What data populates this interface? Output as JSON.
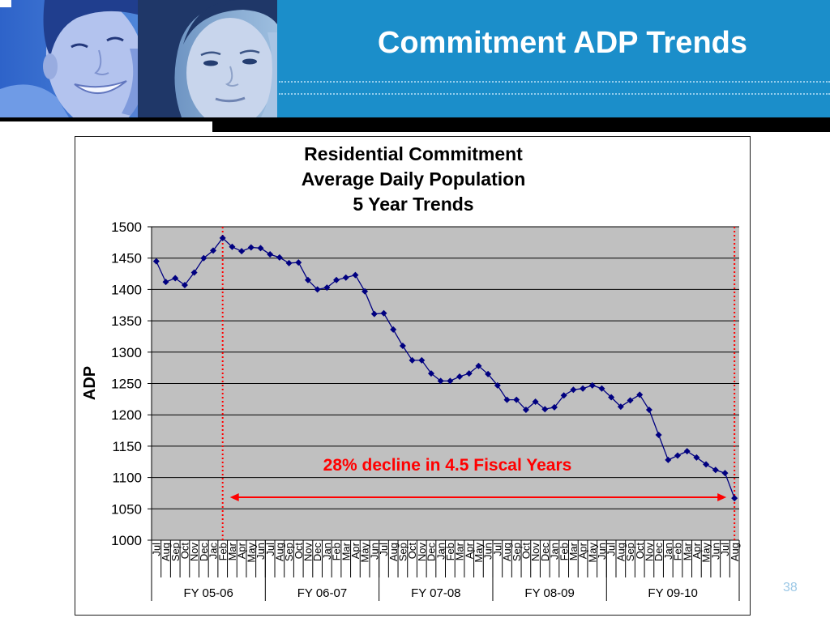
{
  "slide": {
    "title": "Commitment ADP Trends",
    "page_number": "38"
  },
  "colors": {
    "header_blue": "#1B8ECA",
    "header_bar": "#000000",
    "title_text": "#FFFFFF",
    "plot_background": "#C0C0C0",
    "page_number": "#9CC8E6"
  },
  "chart_data": {
    "type": "line",
    "title": [
      "Residential Commitment",
      "Average Daily Population",
      "5 Year Trends"
    ],
    "ylabel": "ADP",
    "ylim": [
      1000,
      1500
    ],
    "yticks": [
      1000,
      1050,
      1100,
      1150,
      1200,
      1250,
      1300,
      1350,
      1400,
      1450,
      1500
    ],
    "grid": true,
    "categories": [
      "Jul",
      "Aug",
      "Sep",
      "Oct",
      "Nov",
      "Dec",
      "Jac",
      "Feb",
      "Mar",
      "Apr",
      "May",
      "Jun",
      "Jul",
      "Aug",
      "Sep",
      "Oct",
      "Nov",
      "Dec",
      "Jan",
      "Feb",
      "Mar",
      "Apr",
      "May",
      "Jun",
      "Jul",
      "Aug",
      "Sep",
      "Oct",
      "Nov",
      "Dec",
      "Jan",
      "Feb",
      "Mar",
      "Apr",
      "May",
      "Jun",
      "Jul",
      "Aug",
      "Sep",
      "Oct",
      "Nov",
      "Dec",
      "Jan",
      "Feb",
      "Mar",
      "Apr",
      "May",
      "Jun",
      "Jul",
      "Aug",
      "Sep",
      "Oct",
      "Nov",
      "Dec",
      "Jan",
      "Feb",
      "Mar",
      "Apr",
      "May",
      "Jun",
      "Jul",
      "Aug"
    ],
    "groups": [
      {
        "label": "FY 05-06",
        "count": 12
      },
      {
        "label": "FY 06-07",
        "count": 12
      },
      {
        "label": "FY 07-08",
        "count": 12
      },
      {
        "label": "FY 08-09",
        "count": 12
      },
      {
        "label": "FY 09-10",
        "count": 14
      }
    ],
    "series": [
      {
        "color": "#000080",
        "values": [
          1445,
          1412,
          1418,
          1407,
          1427,
          1450,
          1462,
          1482,
          1468,
          1461,
          1467,
          1466,
          1456,
          1451,
          1442,
          1443,
          1415,
          1400,
          1403,
          1415,
          1419,
          1423,
          1397,
          1361,
          1362,
          1336,
          1310,
          1287,
          1287,
          1266,
          1254,
          1254,
          1261,
          1266,
          1278,
          1265,
          1247,
          1224,
          1224,
          1208,
          1221,
          1209,
          1212,
          1231,
          1240,
          1242,
          1247,
          1242,
          1228,
          1213,
          1223,
          1232,
          1208,
          1168,
          1128,
          1135,
          1142,
          1132,
          1121,
          1112,
          1107,
          1067
        ]
      }
    ],
    "reference_lines_at_index": [
      7,
      61
    ],
    "annotation": {
      "text": "28% decline in 4.5 Fiscal Years",
      "color": "#FF0000",
      "arrow_from_index": 7,
      "arrow_to_index": 61
    }
  }
}
